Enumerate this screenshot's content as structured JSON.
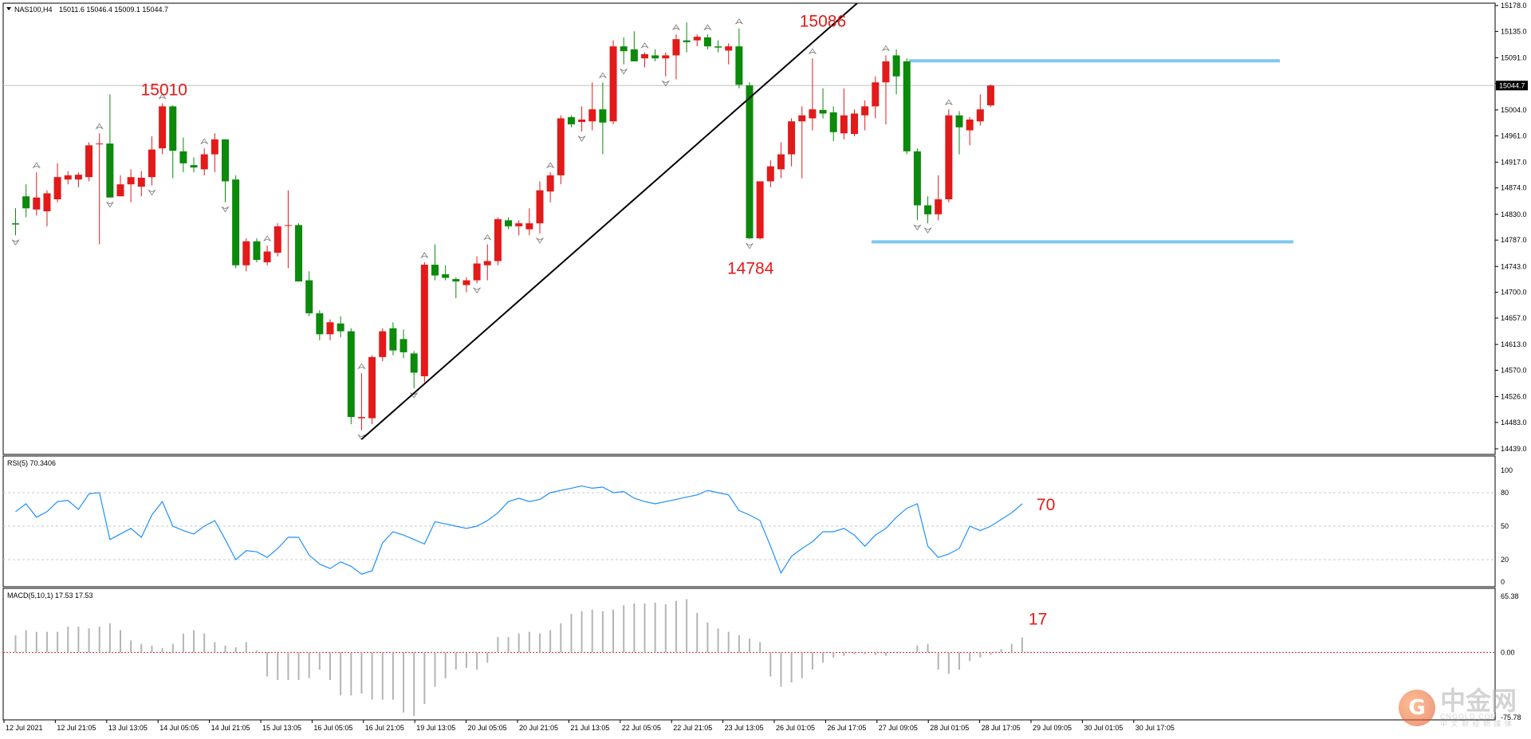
{
  "chart_data": {
    "type": "candlestick",
    "symbol_label": "NAS100,H4",
    "ohlc_label": "15011.6 15046.4 15009.1 15044.7",
    "current_price": 15044.7,
    "price_range": [
      14439,
      15178
    ],
    "price_ticks": [
      "15178.0",
      "15135.0",
      "15091.0",
      "15048.0",
      "15004.0",
      "14961.0",
      "14917.0",
      "14874.0",
      "14830.0",
      "14787.0",
      "14743.0",
      "14700.0",
      "14657.0",
      "14613.0",
      "14570.0",
      "14526.0",
      "14483.0",
      "14439.0"
    ],
    "current_price_label": "15044.7",
    "x_labels": [
      "12 Jul 2021",
      "12 Jul 21:05",
      "13 Jul 13:05",
      "14 Jul 05:05",
      "14 Jul 21:05",
      "15 Jul 13:05",
      "16 Jul 05:05",
      "16 Jul 21:05",
      "19 Jul 13:05",
      "20 Jul 05:05",
      "20 Jul 21:05",
      "21 Jul 13:05",
      "22 Jul 05:05",
      "22 Jul 21:05",
      "23 Jul 13:05",
      "26 Jul 01:05",
      "26 Jul 17:05",
      "27 Jul 09:05",
      "28 Jul 01:05",
      "28 Jul 17:05",
      "29 Jul 09:05",
      "30 Jul 01:05",
      "30 Jul 17:05"
    ],
    "candles": [
      [
        14815,
        14840,
        14795,
        14813
      ],
      [
        14860,
        14880,
        14825,
        14840
      ],
      [
        14838,
        14900,
        14828,
        14858
      ],
      [
        14835,
        14870,
        14810,
        14865
      ],
      [
        14855,
        14915,
        14850,
        14892
      ],
      [
        14888,
        14902,
        14880,
        14895
      ],
      [
        14888,
        14900,
        14875,
        14896
      ],
      [
        14892,
        14950,
        14885,
        14945
      ],
      [
        14948,
        14965,
        14780,
        14948
      ],
      [
        14948,
        15030,
        14858,
        14858
      ],
      [
        14860,
        14895,
        14860,
        14880
      ],
      [
        14880,
        14905,
        14850,
        14892
      ],
      [
        14876,
        14902,
        14860,
        14891
      ],
      [
        14892,
        14960,
        14878,
        14938
      ],
      [
        14940,
        15015,
        14930,
        15010
      ],
      [
        15010,
        15012,
        14890,
        14936
      ],
      [
        14935,
        14958,
        14900,
        14915
      ],
      [
        14912,
        14925,
        14900,
        14908
      ],
      [
        14905,
        14940,
        14895,
        14930
      ],
      [
        14930,
        14965,
        14900,
        14955
      ],
      [
        14955,
        14955,
        14850,
        14885
      ],
      [
        14888,
        14895,
        14740,
        14745
      ],
      [
        14745,
        14790,
        14735,
        14785
      ],
      [
        14785,
        14790,
        14750,
        14754
      ],
      [
        14750,
        14778,
        14745,
        14768
      ],
      [
        14766,
        14815,
        14760,
        14810
      ],
      [
        14812,
        14870,
        14740,
        14812
      ],
      [
        14812,
        14815,
        14720,
        14718
      ],
      [
        14720,
        14735,
        14660,
        14665
      ],
      [
        14665,
        14670,
        14620,
        14630
      ],
      [
        14630,
        14655,
        14620,
        14650
      ],
      [
        14648,
        14660,
        14625,
        14635
      ],
      [
        14635,
        14640,
        14480,
        14492
      ],
      [
        14490,
        14565,
        14470,
        14492
      ],
      [
        14490,
        14595,
        14480,
        14592
      ],
      [
        14592,
        14640,
        14585,
        14635
      ],
      [
        14640,
        14650,
        14595,
        14603
      ],
      [
        14622,
        14638,
        14590,
        14600
      ],
      [
        14598,
        14602,
        14540,
        14566
      ],
      [
        14560,
        14750,
        14550,
        14746
      ],
      [
        14746,
        14780,
        14720,
        14728
      ],
      [
        14730,
        14745,
        14720,
        14724
      ],
      [
        14722,
        14725,
        14690,
        14718
      ],
      [
        14712,
        14725,
        14700,
        14720
      ],
      [
        14720,
        14760,
        14715,
        14748
      ],
      [
        14745,
        14780,
        14720,
        14752
      ],
      [
        14752,
        14825,
        14745,
        14822
      ],
      [
        14820,
        14825,
        14805,
        14810
      ],
      [
        14810,
        14820,
        14795,
        14815
      ],
      [
        14805,
        14840,
        14795,
        14815
      ],
      [
        14815,
        14885,
        14798,
        14870
      ],
      [
        14868,
        14900,
        14850,
        14895
      ],
      [
        14895,
        14995,
        14880,
        14990
      ],
      [
        14992,
        14995,
        14975,
        14980
      ],
      [
        14984,
        15010,
        14968,
        14988
      ],
      [
        14985,
        15050,
        14970,
        15005
      ],
      [
        15005,
        15050,
        14930,
        14983
      ],
      [
        14985,
        15120,
        14980,
        15110
      ],
      [
        15110,
        15125,
        15080,
        15102
      ],
      [
        15105,
        15135,
        15085,
        15085
      ],
      [
        15090,
        15100,
        15075,
        15097
      ],
      [
        15095,
        15105,
        15085,
        15090
      ],
      [
        15090,
        15100,
        15060,
        15095
      ],
      [
        15095,
        15130,
        15055,
        15122
      ],
      [
        15120,
        15150,
        15100,
        15117
      ],
      [
        15120,
        15130,
        15110,
        15126
      ],
      [
        15125,
        15130,
        15105,
        15110
      ],
      [
        15110,
        15120,
        15100,
        15108
      ],
      [
        15103,
        15115,
        15080,
        15110
      ],
      [
        15110,
        15140,
        15040,
        15046
      ],
      [
        15045,
        15050,
        14789,
        14790
      ],
      [
        14790,
        14880,
        14788,
        14885
      ],
      [
        14885,
        14920,
        14875,
        14910
      ],
      [
        14905,
        14950,
        14890,
        14930
      ],
      [
        14930,
        14990,
        14910,
        14985
      ],
      [
        14985,
        15010,
        14890,
        14995
      ],
      [
        14990,
        15090,
        14970,
        15005
      ],
      [
        15004,
        15040,
        14990,
        14998
      ],
      [
        15000,
        15010,
        14952,
        14967
      ],
      [
        14965,
        15040,
        14955,
        14995
      ],
      [
        14964,
        15005,
        14960,
        14998
      ],
      [
        14995,
        15020,
        14970,
        15010
      ],
      [
        15010,
        15060,
        14990,
        15050
      ],
      [
        15050,
        15095,
        14980,
        15085
      ],
      [
        15095,
        15105,
        15030,
        15060
      ],
      [
        15085,
        15090,
        14930,
        14935
      ],
      [
        14935,
        14940,
        14820,
        14845
      ],
      [
        14845,
        14860,
        14815,
        14830
      ],
      [
        14830,
        14895,
        14820,
        14855
      ],
      [
        14855,
        15005,
        14850,
        14995
      ],
      [
        14995,
        15002,
        14930,
        14975
      ],
      [
        14970,
        14992,
        14945,
        14988
      ],
      [
        14985,
        15030,
        14978,
        15005
      ],
      [
        15011.6,
        15046.4,
        15009.1,
        15044.7
      ]
    ],
    "fractals_up": [
      2,
      8,
      14,
      18,
      24,
      33,
      39,
      45,
      51,
      56,
      60,
      63,
      66,
      69,
      76,
      83,
      89
    ],
    "fractals_down": [
      0,
      9,
      13,
      20,
      33,
      38,
      44,
      50,
      54,
      58,
      62,
      70,
      86,
      87
    ],
    "annotations": {
      "label_15010": "15010",
      "label_15086": "15086",
      "label_14784": "14784",
      "rsi_callout": "70",
      "macd_callout": "17"
    },
    "resistance": 15086,
    "support": 14784,
    "rsi": {
      "label": "RSI(5) 70.3406",
      "ticks": [
        "100",
        "80",
        "50",
        "20",
        "0"
      ],
      "values": [
        63,
        70,
        58,
        63,
        72,
        73,
        65,
        79,
        80,
        38,
        43,
        48,
        40,
        60,
        72,
        50,
        46,
        43,
        50,
        55,
        38,
        20,
        28,
        27,
        22,
        30,
        40,
        40,
        24,
        16,
        12,
        18,
        14,
        7,
        10,
        35,
        45,
        42,
        38,
        34,
        54,
        52,
        50,
        48,
        50,
        55,
        62,
        72,
        75,
        72,
        74,
        80,
        82,
        84,
        86,
        84,
        85,
        80,
        81,
        75,
        72,
        70,
        72,
        74,
        76,
        78,
        82,
        80,
        78,
        64,
        60,
        55,
        32,
        8,
        23,
        30,
        36,
        45,
        45,
        48,
        42,
        32,
        42,
        48,
        58,
        66,
        70,
        32,
        22,
        25,
        30,
        50,
        46,
        50,
        56,
        62,
        70
      ],
      "levels": [
        80,
        50,
        20
      ]
    },
    "macd": {
      "label": "MACD(5,10,1) 17.53 17.53",
      "ticks": [
        "65.38",
        "0.00",
        "-75.78"
      ],
      "range": [
        -75.78,
        65.38
      ],
      "values": [
        20,
        26,
        24,
        24,
        24,
        30,
        30,
        28,
        30,
        34,
        26,
        14,
        10,
        8,
        5,
        10,
        22,
        26,
        22,
        12,
        8,
        6,
        12,
        2,
        -28,
        -32,
        -32,
        -32,
        -30,
        -20,
        -32,
        -50,
        -50,
        -48,
        -55,
        -55,
        -55,
        -70,
        -74,
        -60,
        -40,
        -30,
        -20,
        -18,
        -20,
        -12,
        18,
        18,
        22,
        24,
        22,
        26,
        34,
        45,
        48,
        50,
        48,
        50,
        55,
        57,
        57,
        58,
        56,
        60,
        62,
        46,
        35,
        28,
        24,
        20,
        16,
        12,
        -28,
        -40,
        -35,
        -30,
        -20,
        -12,
        -6,
        -4,
        -2,
        -2,
        -3,
        -4,
        0,
        0,
        8,
        10,
        -20,
        -25,
        -20,
        -10,
        -6,
        -3,
        4,
        10,
        17.5
      ],
      "zero_line": 0
    }
  },
  "watermark": {
    "logo_char": "G",
    "name_cn": "中金网",
    "domain": "CNGOLD.COM",
    "subtitle": "中 文 财 经 新 媒 体"
  },
  "colors": {
    "bull": "#e31a1a",
    "bear": "#0b8a0b",
    "trendline": "#000000",
    "levels": "#7ec8f0",
    "rsi_line": "#1e90ff",
    "annotation": "#e31a1a",
    "macd_bar": "#b4b4b4",
    "macd_zero": "#e31a1a"
  }
}
